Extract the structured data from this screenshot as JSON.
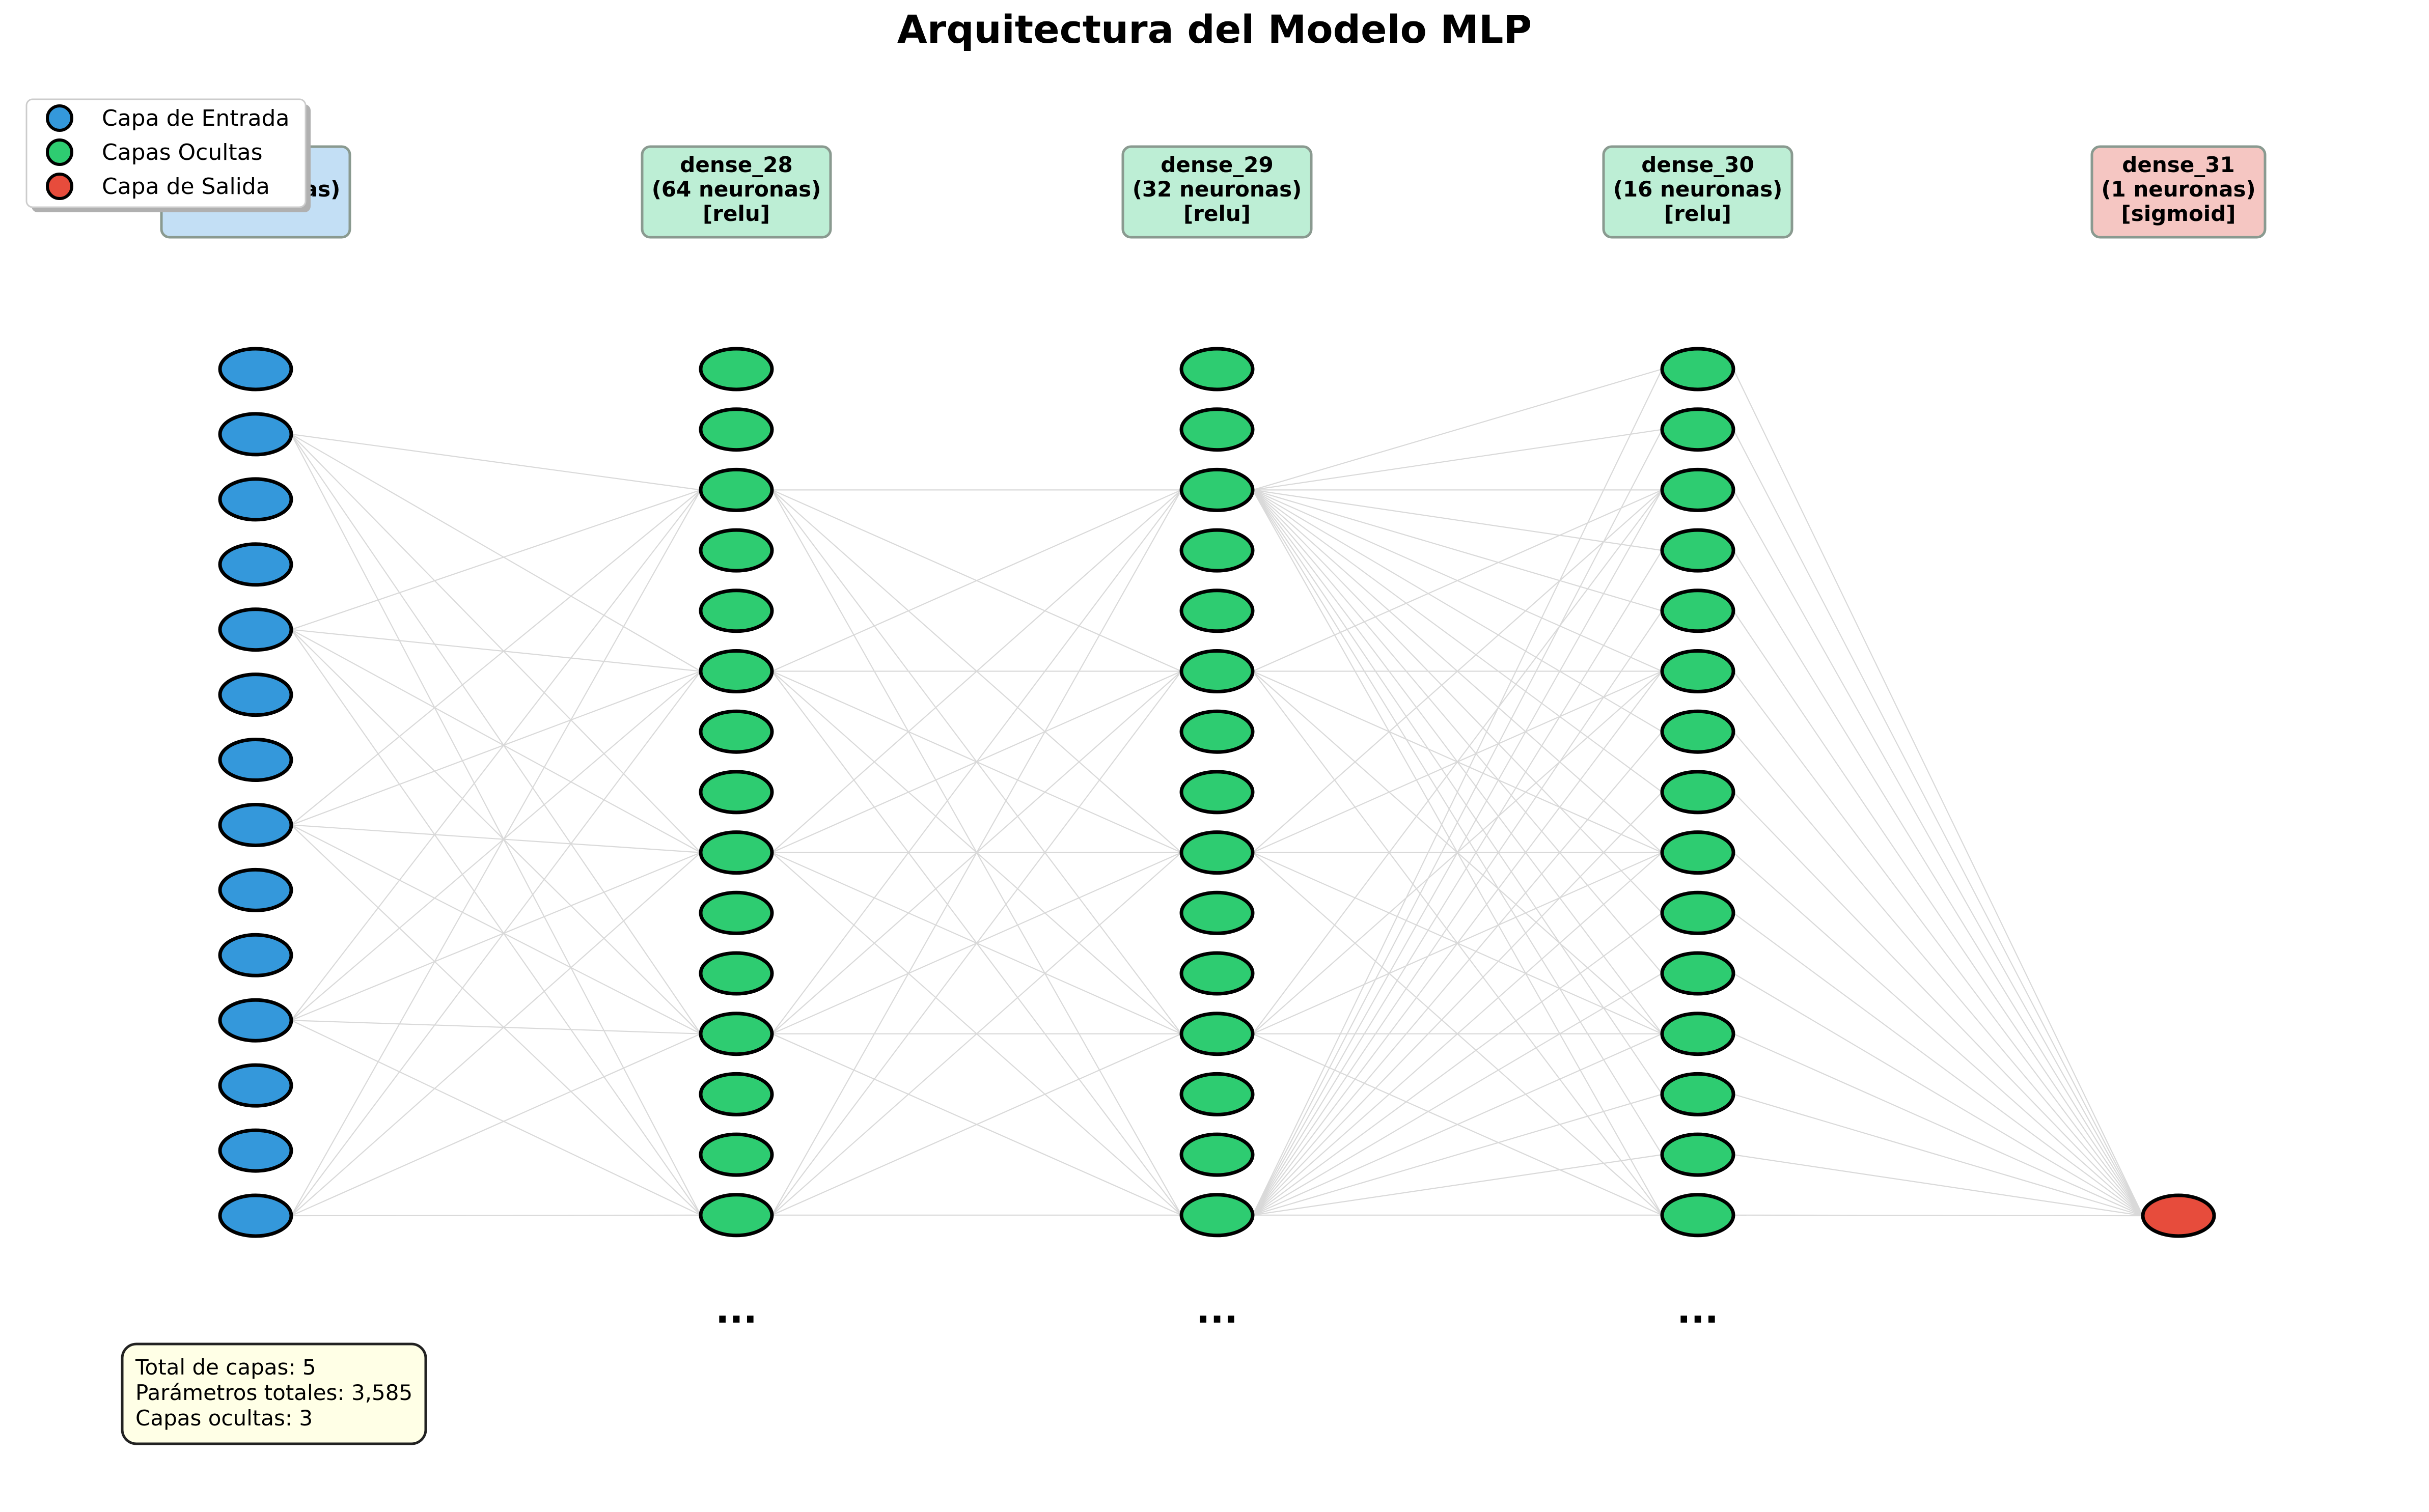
{
  "title": "Arquitectura del Modelo MLP",
  "colors": {
    "input": "#3498db",
    "hidden": "#2ecc71",
    "output": "#e74c3c",
    "input_box": "#c3dff5",
    "hidden_box": "#bdeed5",
    "output_box": "#f5c6c2",
    "info_box": "#ffffe6",
    "connection": "#d9d9d9"
  },
  "layers": [
    {
      "kind": "input",
      "label_lines": [
        "",
        "(14 neuronas)"
      ],
      "neurons_total": 14,
      "neurons_shown": 14,
      "truncated": false
    },
    {
      "kind": "hidden",
      "label_lines": [
        "dense_28",
        "(64 neuronas)",
        "[relu]"
      ],
      "neurons_total": 64,
      "neurons_shown": 15,
      "truncated": true
    },
    {
      "kind": "hidden",
      "label_lines": [
        "dense_29",
        "(32 neuronas)",
        "[relu]"
      ],
      "neurons_total": 32,
      "neurons_shown": 15,
      "truncated": true
    },
    {
      "kind": "hidden",
      "label_lines": [
        "dense_30",
        "(16 neuronas)",
        "[relu]"
      ],
      "neurons_total": 16,
      "neurons_shown": 15,
      "truncated": true
    },
    {
      "kind": "output",
      "label_lines": [
        "dense_31",
        "(1 neuronas)",
        "[sigmoid]"
      ],
      "neurons_total": 1,
      "neurons_shown": 1,
      "truncated": false
    }
  ],
  "ellipsis_text": "...",
  "legend": [
    {
      "label": "Capa de Entrada",
      "color_key": "input"
    },
    {
      "label": "Capas Ocultas",
      "color_key": "hidden"
    },
    {
      "label": "Capa de Salida",
      "color_key": "output"
    }
  ],
  "info_lines": [
    "Total de capas: 5",
    "Parámetros totales: 3,585",
    "Capas ocultas: 3"
  ]
}
